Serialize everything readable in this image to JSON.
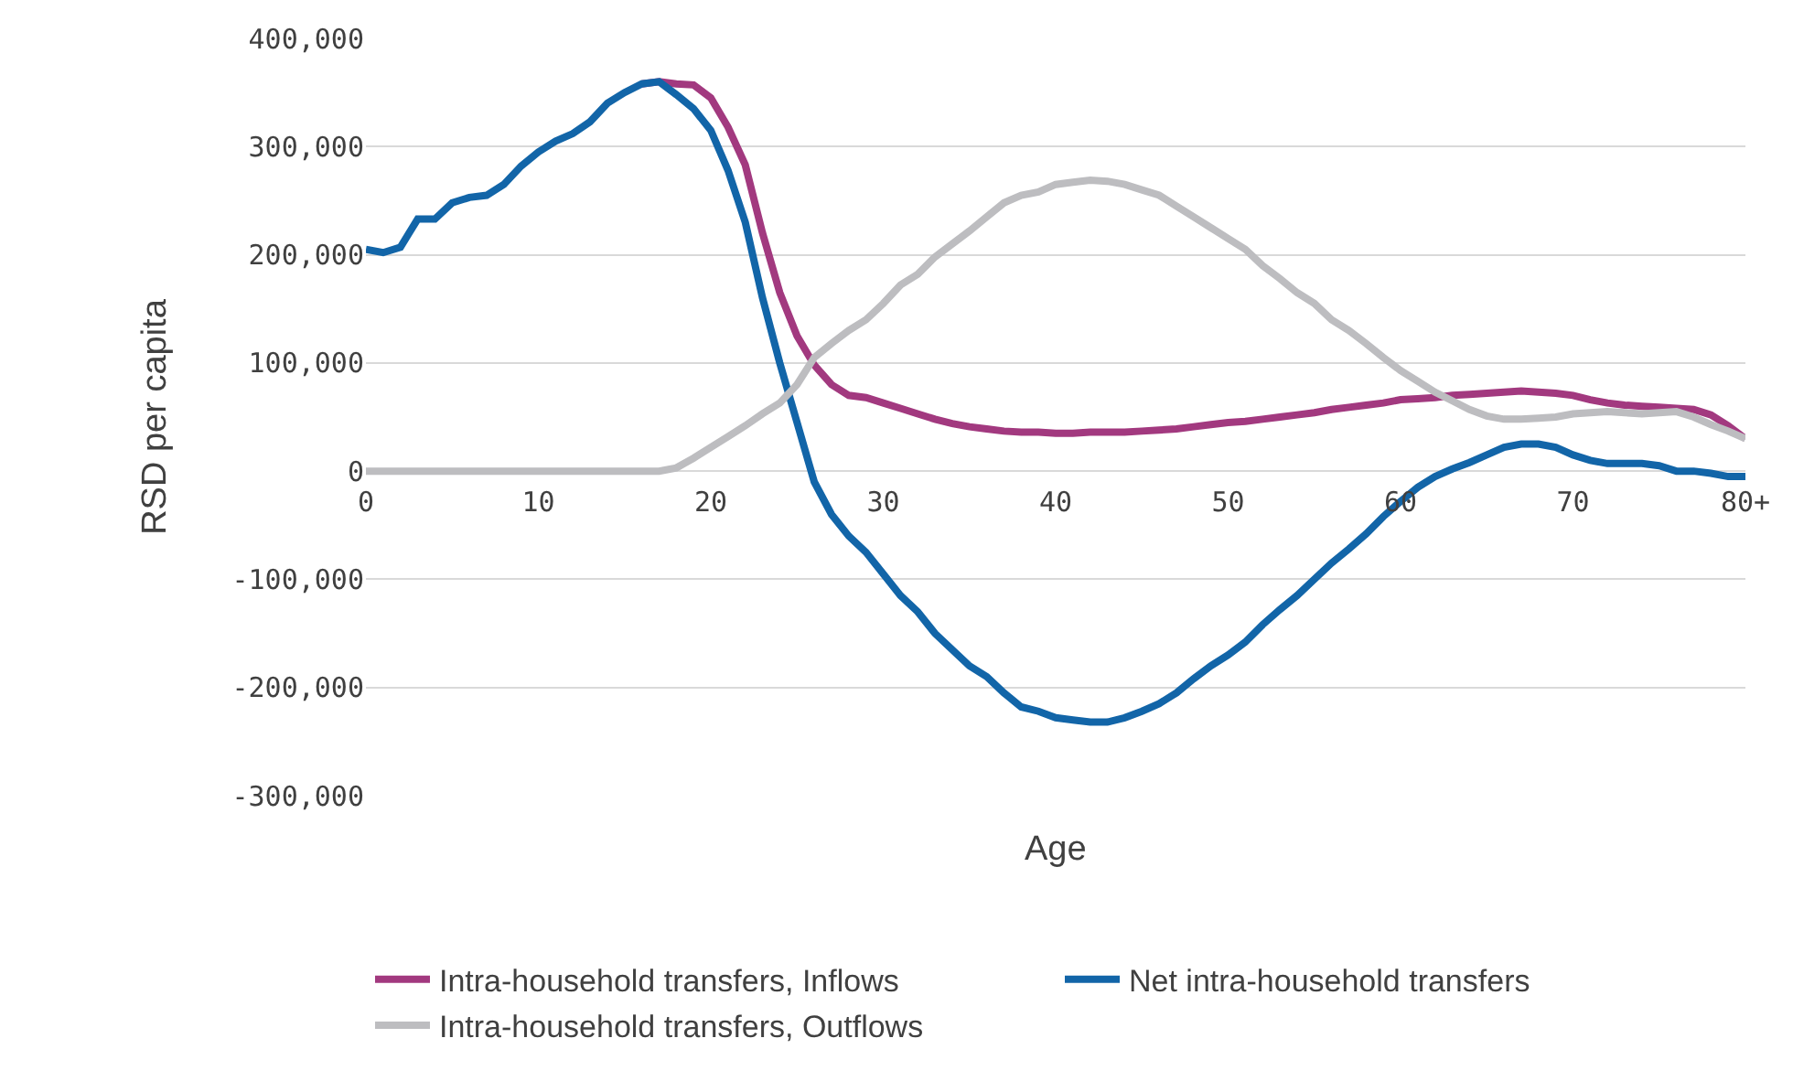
{
  "chart_data": {
    "type": "line",
    "xlabel": "Age",
    "ylabel": "RSD per capita",
    "x": [
      0,
      1,
      2,
      3,
      4,
      5,
      6,
      7,
      8,
      9,
      10,
      11,
      12,
      13,
      14,
      15,
      16,
      17,
      18,
      19,
      20,
      21,
      22,
      23,
      24,
      25,
      26,
      27,
      28,
      29,
      30,
      31,
      32,
      33,
      34,
      35,
      36,
      37,
      38,
      39,
      40,
      41,
      42,
      43,
      44,
      45,
      46,
      47,
      48,
      49,
      50,
      51,
      52,
      53,
      54,
      55,
      56,
      57,
      58,
      59,
      60,
      61,
      62,
      63,
      64,
      65,
      66,
      67,
      68,
      69,
      70,
      71,
      72,
      73,
      74,
      75,
      76,
      77,
      78,
      79,
      80
    ],
    "series": [
      {
        "name": "Intra-household transfers, Inflows",
        "color": "#a2397f",
        "values": [
          null,
          null,
          null,
          null,
          null,
          null,
          null,
          null,
          null,
          null,
          null,
          null,
          null,
          null,
          null,
          null,
          358000,
          360000,
          358000,
          357000,
          345000,
          318000,
          283000,
          220000,
          165000,
          125000,
          98000,
          80000,
          70000,
          68000,
          63000,
          58000,
          53000,
          48000,
          44000,
          41000,
          39000,
          37000,
          36000,
          36000,
          35000,
          35000,
          36000,
          36000,
          36000,
          37000,
          38000,
          39000,
          41000,
          43000,
          45000,
          46000,
          48000,
          50000,
          52000,
          54000,
          57000,
          59000,
          61000,
          63000,
          66000,
          67000,
          68000,
          70000,
          71000,
          72000,
          73000,
          74000,
          73000,
          72000,
          70000,
          66000,
          63000,
          61000,
          60000,
          59000,
          58000,
          57000,
          52000,
          42000,
          30000
        ]
      },
      {
        "name": "Net intra-household transfers",
        "color": "#1265a8",
        "values": [
          205000,
          202000,
          207000,
          233000,
          233000,
          248000,
          253000,
          255000,
          265000,
          282000,
          295000,
          305000,
          312000,
          323000,
          340000,
          350000,
          358000,
          360000,
          348000,
          335000,
          315000,
          278000,
          230000,
          160000,
          100000,
          45000,
          -10000,
          -40000,
          -60000,
          -75000,
          -95000,
          -115000,
          -130000,
          -150000,
          -165000,
          -180000,
          -190000,
          -205000,
          -218000,
          -222000,
          -228000,
          -230000,
          -232000,
          -232000,
          -228000,
          -222000,
          -215000,
          -205000,
          -192000,
          -180000,
          -170000,
          -158000,
          -142000,
          -128000,
          -115000,
          -100000,
          -85000,
          -72000,
          -58000,
          -42000,
          -28000,
          -15000,
          -5000,
          2000,
          8000,
          15000,
          22000,
          25000,
          25000,
          22000,
          15000,
          10000,
          7000,
          7000,
          7000,
          5000,
          0,
          0,
          -2000,
          -5000,
          -5000
        ]
      },
      {
        "name": "Intra-household transfers, Outflows",
        "color": "#bdbdc0",
        "values": [
          0,
          0,
          0,
          0,
          0,
          0,
          0,
          0,
          0,
          0,
          0,
          0,
          0,
          0,
          0,
          0,
          0,
          0,
          3000,
          12000,
          22000,
          32000,
          42000,
          53000,
          63000,
          80000,
          105000,
          118000,
          130000,
          140000,
          155000,
          172000,
          182000,
          198000,
          210000,
          222000,
          235000,
          248000,
          255000,
          258000,
          265000,
          267000,
          269000,
          268000,
          265000,
          260000,
          255000,
          245000,
          235000,
          225000,
          215000,
          205000,
          190000,
          178000,
          165000,
          155000,
          140000,
          130000,
          118000,
          105000,
          93000,
          83000,
          73000,
          65000,
          57000,
          51000,
          48000,
          48000,
          49000,
          50000,
          53000,
          54000,
          55000,
          54000,
          53000,
          54000,
          55000,
          50000,
          43000,
          37000,
          30000
        ]
      }
    ],
    "xlim": [
      0,
      80
    ],
    "xticks": [
      0,
      10,
      20,
      30,
      40,
      50,
      60,
      70,
      {
        "value": 80,
        "label": "80+"
      }
    ],
    "ylim": [
      -300000,
      400000
    ],
    "yticks": [
      {
        "value": -300000,
        "label": "-300,000"
      },
      {
        "value": -200000,
        "label": "-200,000"
      },
      {
        "value": -100000,
        "label": "-100,000"
      },
      {
        "value": 0,
        "label": "0"
      },
      {
        "value": 100000,
        "label": "100,000"
      },
      {
        "value": 200000,
        "label": "200,000"
      },
      {
        "value": 300000,
        "label": "300,000"
      },
      {
        "value": 400000,
        "label": "400,000"
      }
    ],
    "grid": "y",
    "legend": "bottom",
    "marker": "none",
    "line_style": "solid"
  }
}
